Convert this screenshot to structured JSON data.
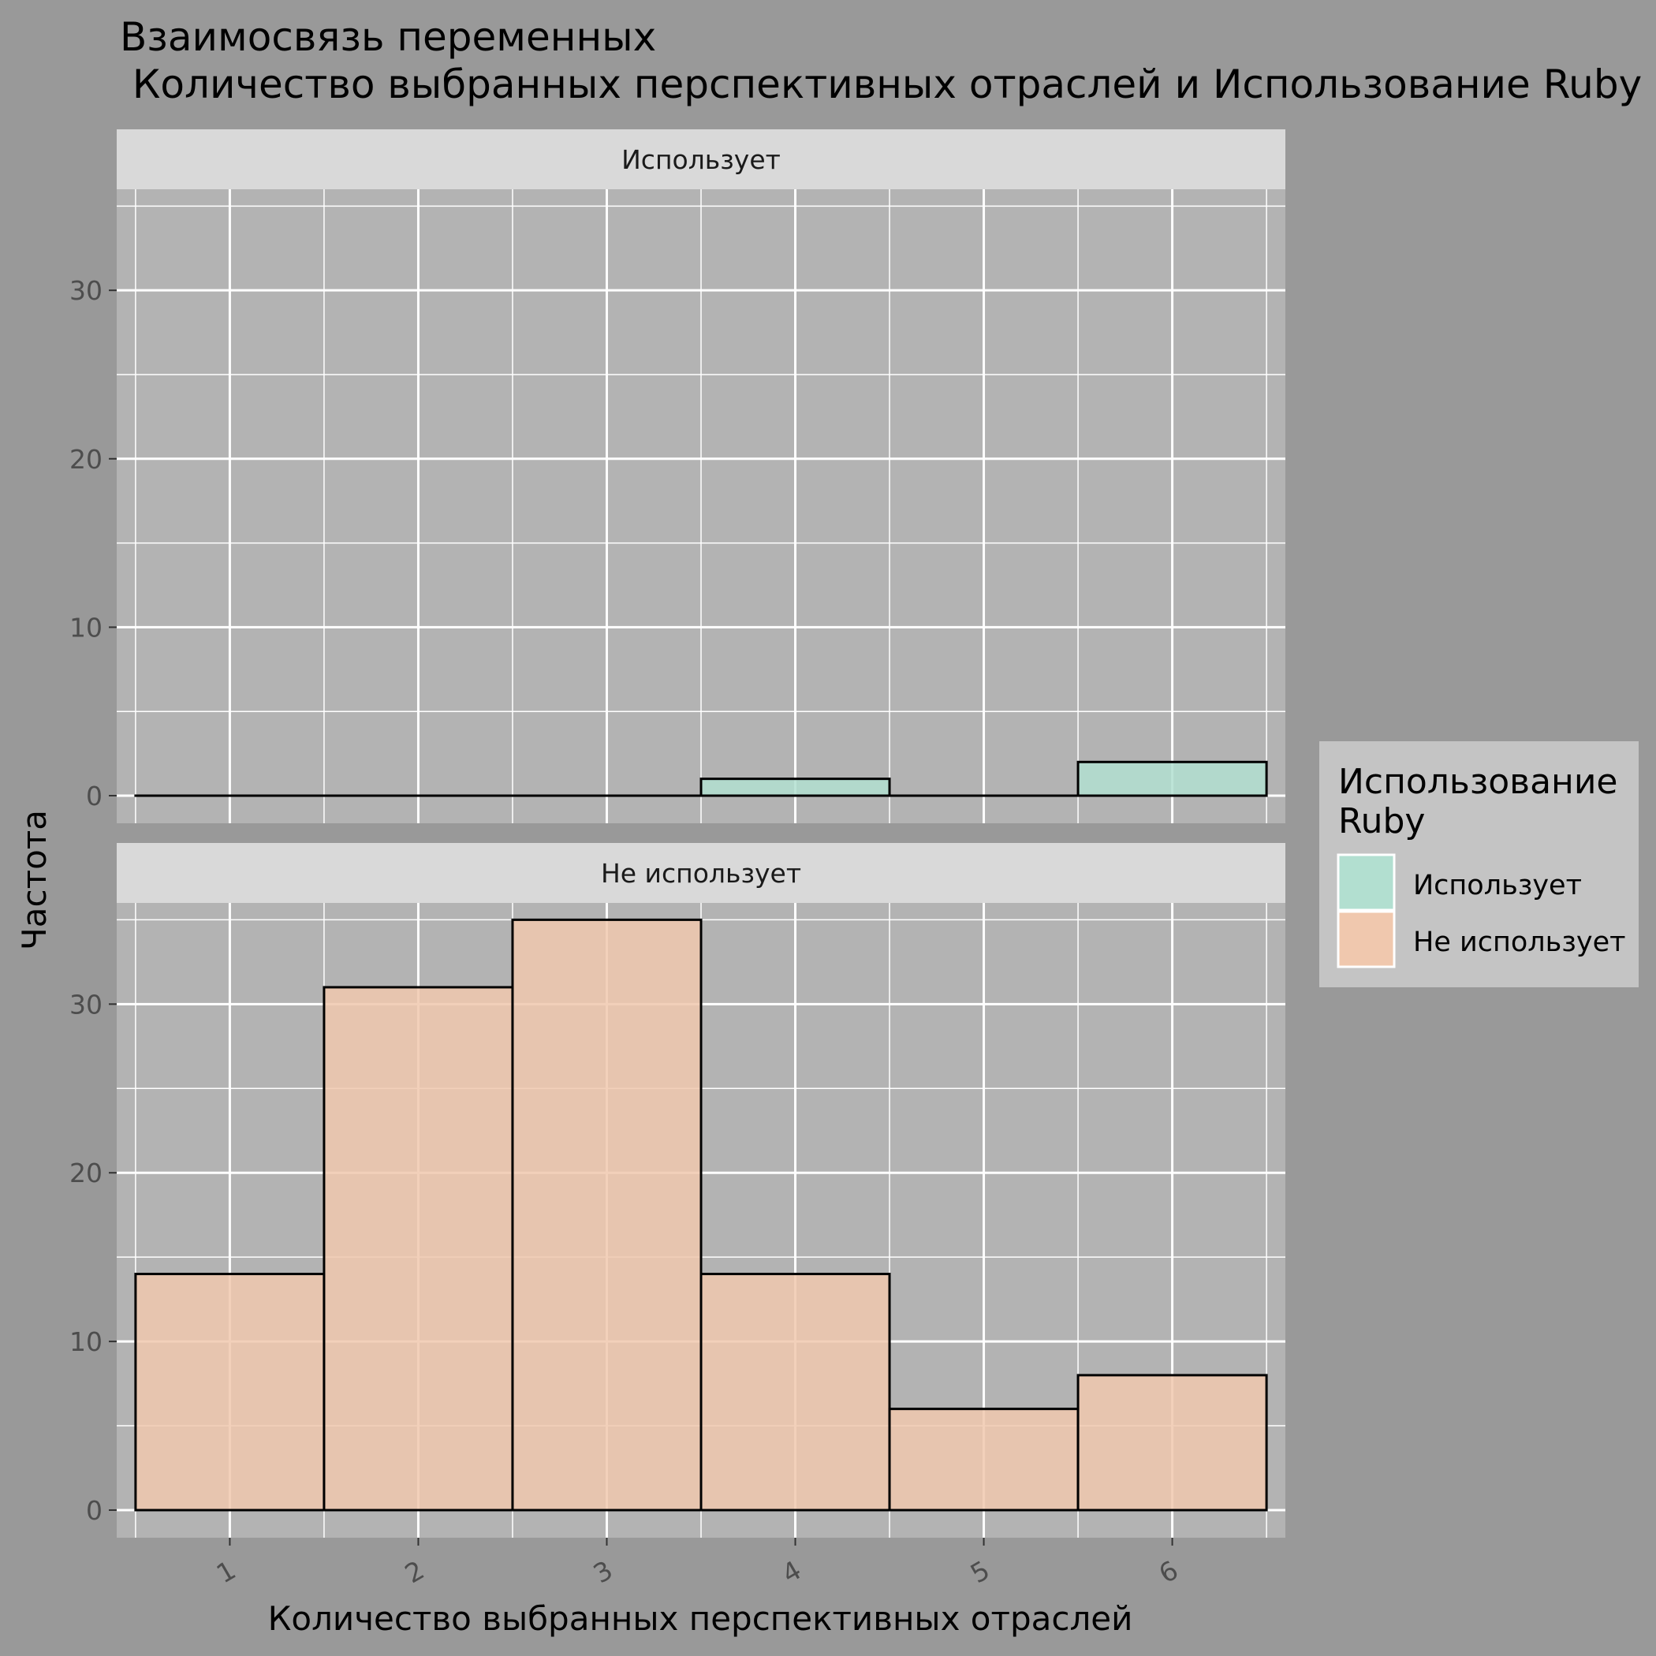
{
  "chart_data": {
    "type": "bar",
    "title_line1": "Взаимосвязь переменных",
    "title_line2": " Количество выбранных перспективных отраслей и Использование Ruby",
    "xlabel": "Количество выбранных перспективных отраслей",
    "ylabel": "Частота",
    "categories": [
      "1",
      "2",
      "3",
      "4",
      "5",
      "6"
    ],
    "ylim": [
      0,
      36
    ],
    "yticks": [
      "0",
      "10",
      "20",
      "30"
    ],
    "grid": true,
    "legend": {
      "title_line1": "Использование",
      "title_line2": "Ruby",
      "position": "right"
    },
    "series": [
      {
        "name": "Использует",
        "values": [
          0,
          0,
          0,
          1,
          0,
          2
        ],
        "color": "#b2dfd0"
      },
      {
        "name": "Не использует",
        "values": [
          14,
          31,
          35,
          14,
          6,
          8
        ],
        "color": "#f0c8ae"
      }
    ],
    "colors": {
      "background": "#999999",
      "panel": "#b3b3b3",
      "strip": "#d9d9d9",
      "grid": "#ffffff",
      "legend_box": "#c4c4c4",
      "bar_outline": "#000000"
    }
  }
}
